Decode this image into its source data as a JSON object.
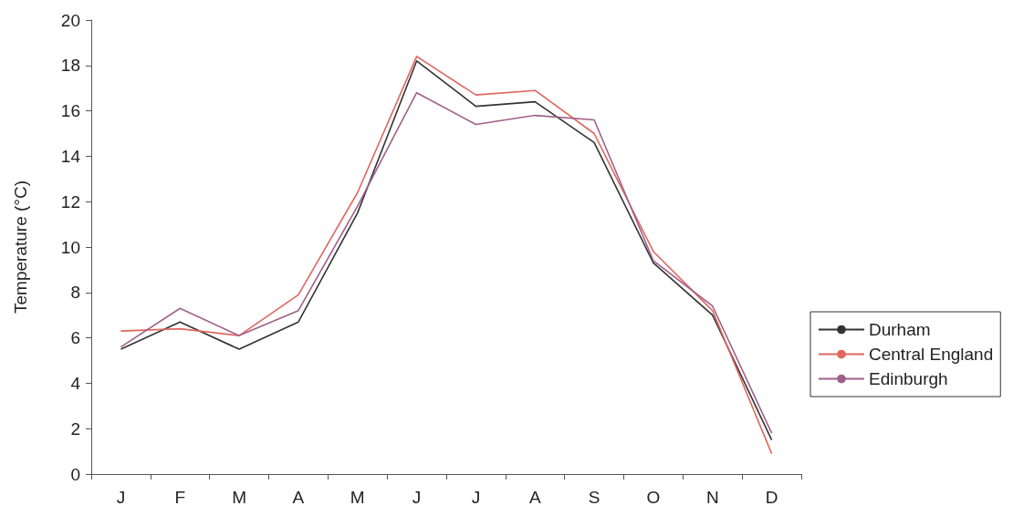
{
  "chart_data": {
    "type": "line",
    "ylabel": "Temperature (°C)",
    "categories": [
      "J",
      "F",
      "M",
      "A",
      "M",
      "J",
      "J",
      "A",
      "S",
      "O",
      "N",
      "D"
    ],
    "series": [
      {
        "name": "Durham",
        "color": "#333333",
        "values": [
          5.5,
          6.7,
          5.5,
          6.7,
          11.5,
          18.2,
          16.2,
          16.4,
          14.6,
          9.3,
          7.0,
          1.5
        ]
      },
      {
        "name": "Central England",
        "color": "#e0665e",
        "values": [
          6.3,
          6.4,
          6.1,
          7.9,
          12.4,
          18.4,
          16.7,
          16.9,
          15.0,
          9.8,
          7.2,
          0.9
        ]
      },
      {
        "name": "Edinburgh",
        "color": "#a0608a",
        "values": [
          5.6,
          7.3,
          6.1,
          7.2,
          11.8,
          16.8,
          15.4,
          15.8,
          15.6,
          9.4,
          7.4,
          1.8
        ]
      }
    ],
    "ylim": [
      0,
      20
    ],
    "yticks": [
      0,
      2,
      4,
      6,
      8,
      10,
      12,
      14,
      16,
      18,
      20
    ],
    "grid": false,
    "legend": "right",
    "marker": "none",
    "line_style": "solid"
  }
}
